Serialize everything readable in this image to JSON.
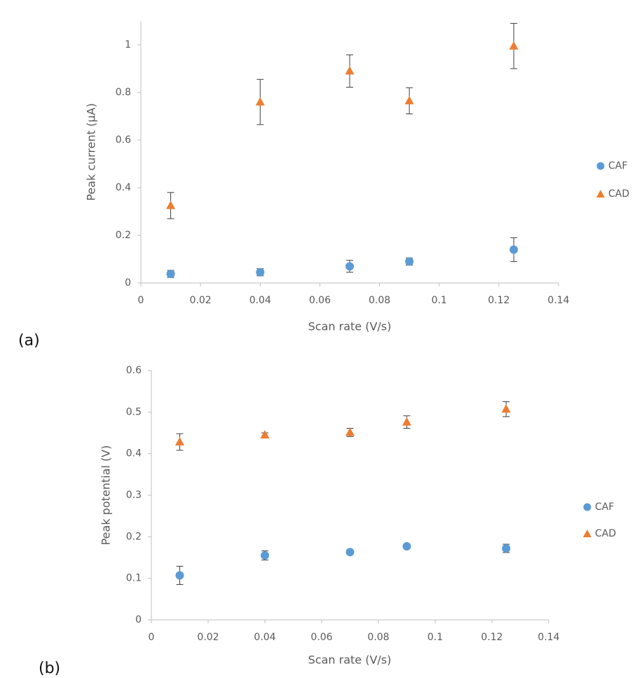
{
  "chart_data": [
    {
      "type": "scatter",
      "panel": "(a)",
      "xlabel": "Scan rate (V/s)",
      "ylabel": "Peak current (μA)",
      "xlim": [
        0,
        0.14
      ],
      "xticks": [
        0,
        0.02,
        0.04,
        0.06,
        0.08,
        0.1,
        0.12,
        0.14
      ],
      "ylim": [
        0,
        1.1
      ],
      "yticks": [
        0,
        0.2,
        0.4,
        0.6,
        0.8,
        1
      ],
      "series": [
        {
          "name": "CAF",
          "color": "#5b9bd5",
          "marker": "circle",
          "x": [
            0.01,
            0.04,
            0.07,
            0.09,
            0.125
          ],
          "values": [
            0.038,
            0.045,
            0.07,
            0.09,
            0.14
          ],
          "errors": [
            0.015,
            0.015,
            0.025,
            0.015,
            0.05
          ]
        },
        {
          "name": "CAD",
          "color": "#ed7d31",
          "marker": "triangle",
          "x": [
            0.01,
            0.04,
            0.07,
            0.09,
            0.125
          ],
          "values": [
            0.325,
            0.76,
            0.89,
            0.765,
            0.995
          ],
          "errors": [
            0.055,
            0.095,
            0.068,
            0.055,
            0.095
          ]
        }
      ]
    },
    {
      "type": "scatter",
      "panel": "(b)",
      "xlabel": "Scan rate (V/s)",
      "ylabel": "Peak potential (V)",
      "xlim": [
        0,
        0.14
      ],
      "xticks": [
        0,
        0.02,
        0.04,
        0.06,
        0.08,
        0.1,
        0.12,
        0.14
      ],
      "ylim": [
        0,
        0.6
      ],
      "yticks": [
        0,
        0.1,
        0.2,
        0.3,
        0.4,
        0.5,
        0.6
      ],
      "series": [
        {
          "name": "CAF",
          "color": "#5b9bd5",
          "marker": "circle",
          "x": [
            0.01,
            0.04,
            0.07,
            0.09,
            0.125
          ],
          "values": [
            0.107,
            0.155,
            0.163,
            0.177,
            0.172
          ],
          "errors": [
            0.022,
            0.011,
            0.004,
            0.004,
            0.01
          ]
        },
        {
          "name": "CAD",
          "color": "#ed7d31",
          "marker": "triangle",
          "x": [
            0.01,
            0.04,
            0.07,
            0.09,
            0.125
          ],
          "values": [
            0.428,
            0.445,
            0.451,
            0.476,
            0.507
          ],
          "errors": [
            0.02,
            0.005,
            0.01,
            0.015,
            0.018
          ]
        }
      ]
    }
  ]
}
